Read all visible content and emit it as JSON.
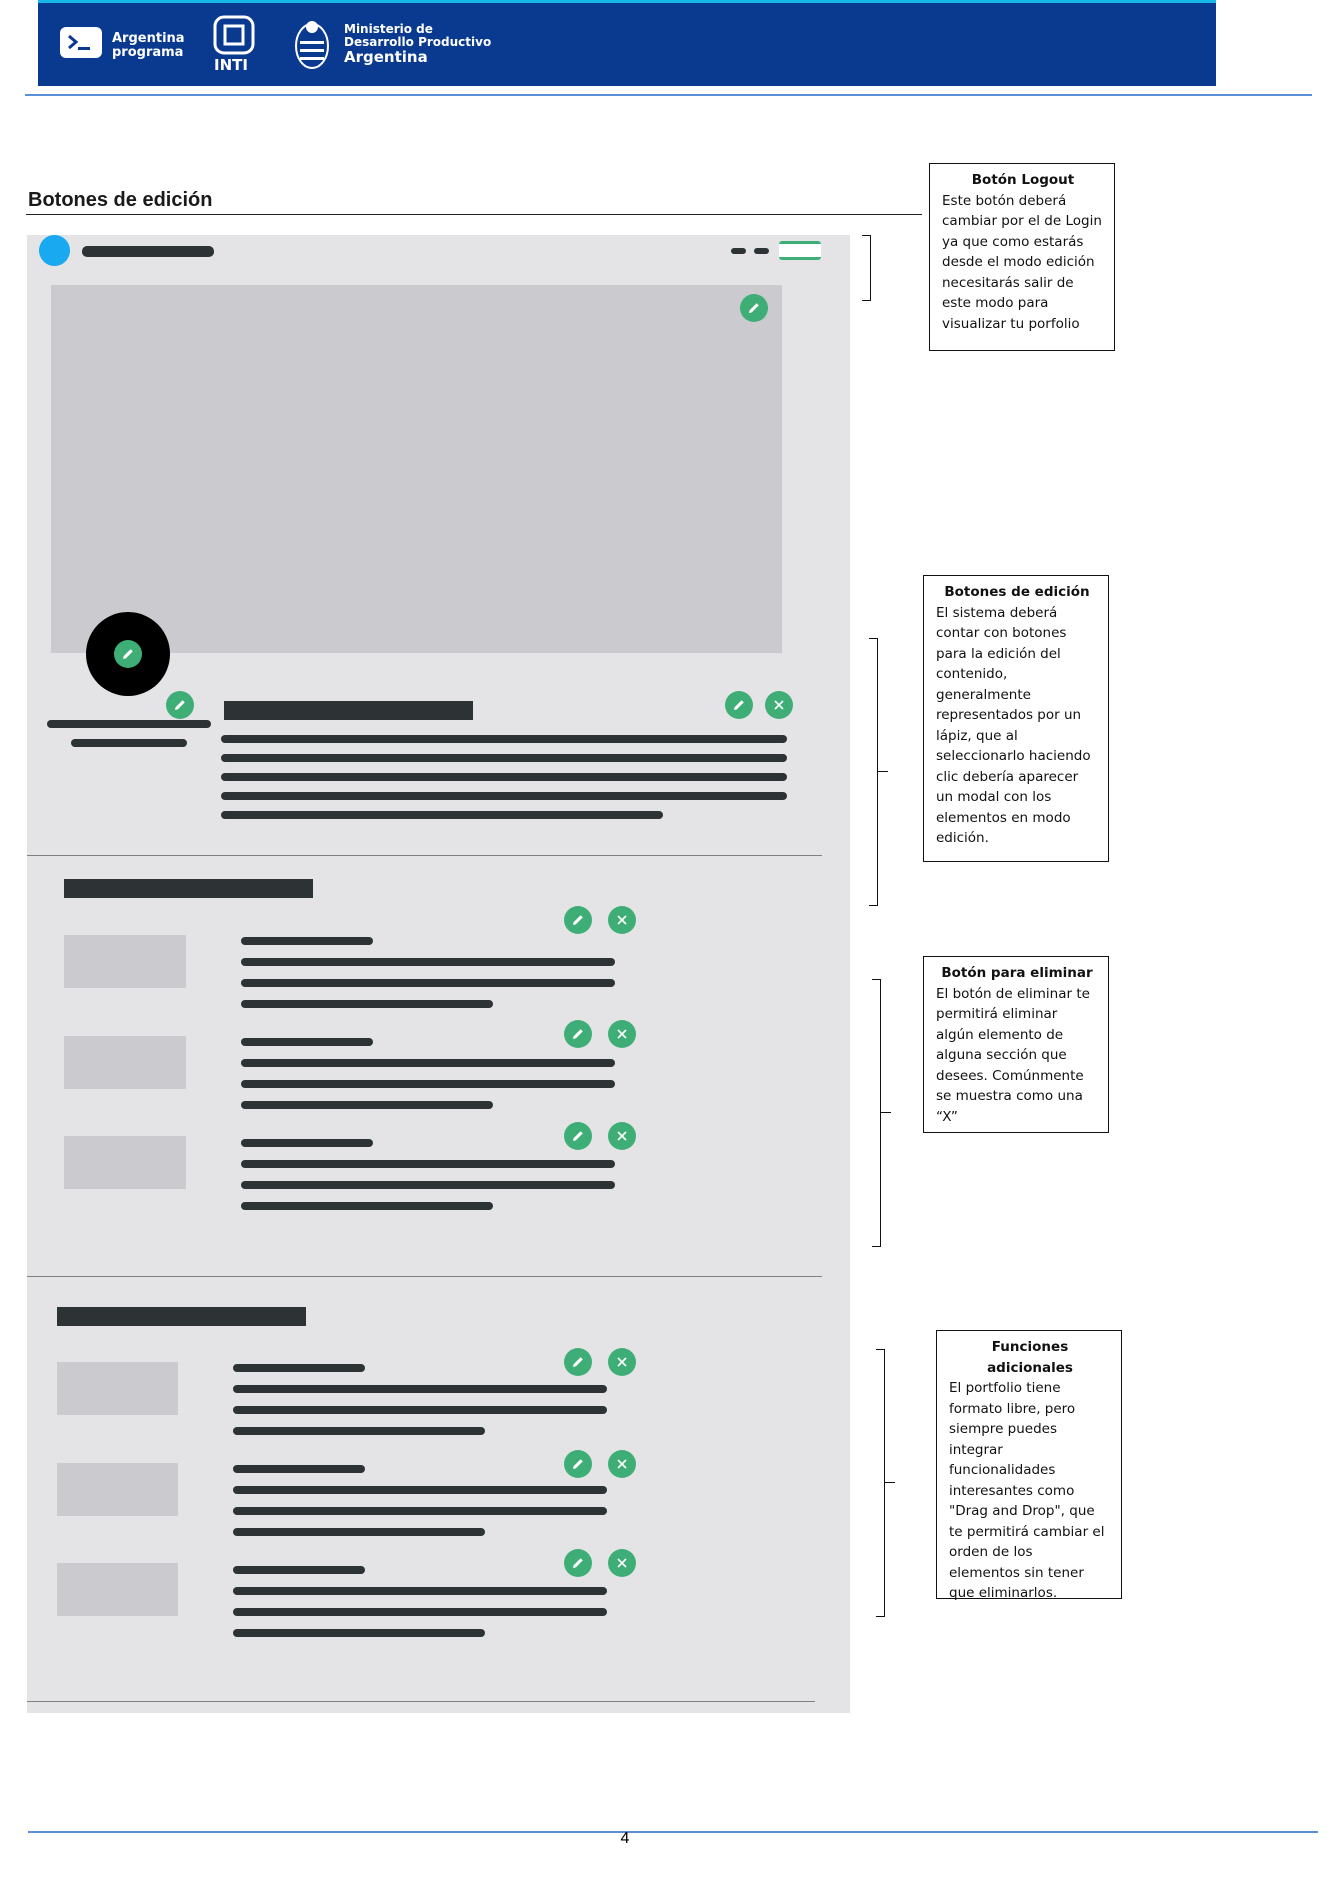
{
  "header": {
    "logo1_line1": "Argentina",
    "logo1_line2": "programa",
    "logo2": "INTI",
    "logo3_line1": "Ministerio de",
    "logo3_line2": "Desarrollo Productivo",
    "logo3_line3": "Argentina"
  },
  "section_title": "Botones de edición",
  "notes": [
    {
      "title": "Botón Logout",
      "body": "Este botón deberá\ncambiar por el de Login\nya que como estarás\ndesde el modo edición\nnecesitarás salir de\neste modo para\nvisualizar tu porfolio"
    },
    {
      "title": "Botones de edición",
      "body": "El sistema deberá\ncontar con botones\npara la edición del\ncontenido,\ngeneralmente\nrepresentados por un\nlápiz, que al\nseleccionarlo haciendo\nclic debería aparecer\nun modal con los\nelementos en modo\nedición."
    },
    {
      "title": "Botón para eliminar",
      "body": "El botón de eliminar te\npermitirá eliminar\nalgún elemento de\nalguna sección que\ndesees. Comúnmente\nse muestra como una\n“X”"
    },
    {
      "title": "Funciones adicionales",
      "body": "El portfolio tiene\nformato libre, pero\nsiempre puedes\nintegrar\nfuncionalidades\ninteresantes como\n\"Drag and Drop\", que\nte permitirá cambiar el\norden de los\nelementos sin tener\nque eliminarlos."
    }
  ],
  "page_number": "4",
  "colors": {
    "header_blue": "#0a3a8f",
    "edit_green": "#3fae76",
    "avatar_blue": "#18a9f0"
  }
}
